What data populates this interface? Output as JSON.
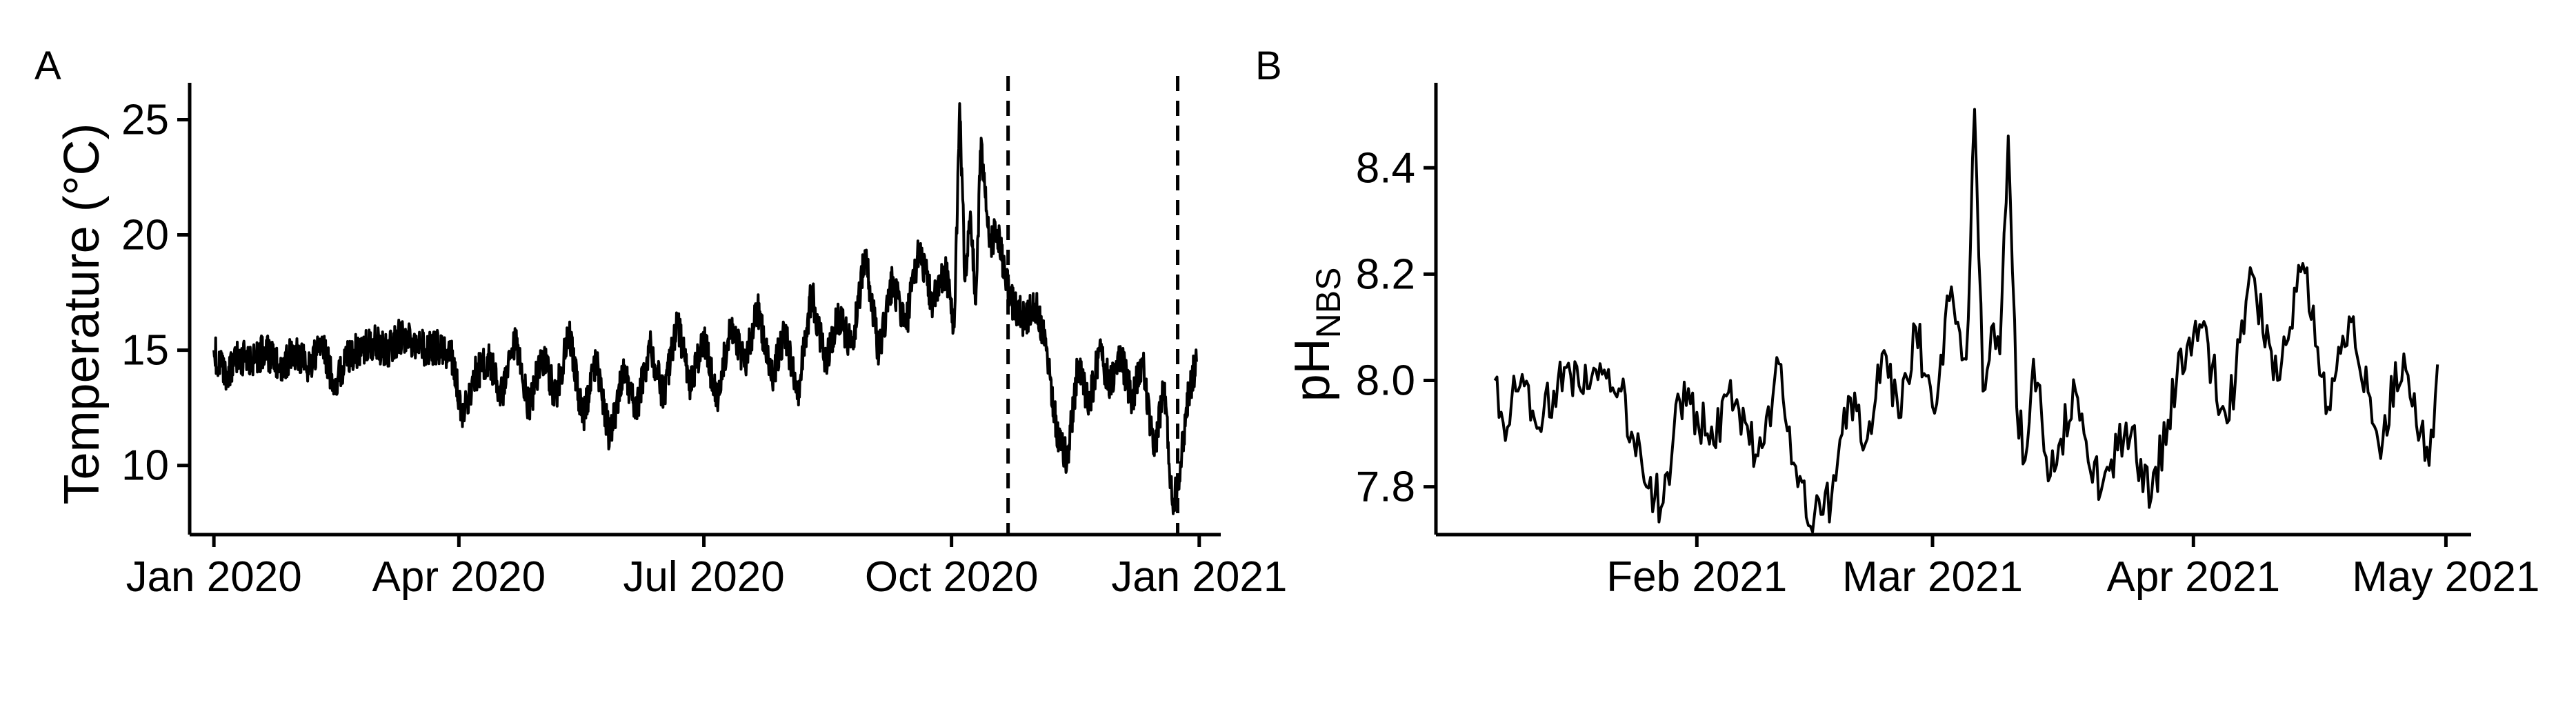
{
  "chart_data": [
    {
      "type": "line",
      "panel_label": "A",
      "ylabel": "Temperature (°C)",
      "xlabel": "",
      "xlim": [
        "2019-12-23",
        "2021-01-09"
      ],
      "ylim": [
        7.0,
        26.6
      ],
      "x_ticks": [
        {
          "value": "2020-01-01",
          "label": "Jan 2020"
        },
        {
          "value": "2020-04-01",
          "label": "Apr 2020"
        },
        {
          "value": "2020-07-01",
          "label": "Jul 2020"
        },
        {
          "value": "2020-10-01",
          "label": "Oct 2020"
        },
        {
          "value": "2021-01-01",
          "label": "Jan 2021"
        }
      ],
      "y_ticks": [
        {
          "value": 10,
          "label": "10"
        },
        {
          "value": 15,
          "label": "15"
        },
        {
          "value": 20,
          "label": "20"
        },
        {
          "value": 25,
          "label": "25"
        }
      ],
      "reference_lines": [
        {
          "x": "2020-10-22",
          "style": "dashed"
        },
        {
          "x": "2020-12-24",
          "style": "dashed"
        }
      ],
      "grid": false,
      "series": [
        {
          "x": [
            "2020-01-01",
            "2020-01-05",
            "2020-01-10",
            "2020-01-15",
            "2020-01-20",
            "2020-01-25",
            "2020-01-31",
            "2020-02-05",
            "2020-02-10",
            "2020-02-15",
            "2020-02-20",
            "2020-02-25",
            "2020-03-01",
            "2020-03-05",
            "2020-03-10",
            "2020-03-15",
            "2020-03-20",
            "2020-03-25",
            "2020-03-30",
            "2020-04-02",
            "2020-04-07",
            "2020-04-12",
            "2020-04-17",
            "2020-04-22",
            "2020-04-27",
            "2020-05-02",
            "2020-05-07",
            "2020-05-12",
            "2020-05-17",
            "2020-05-22",
            "2020-05-27",
            "2020-06-01",
            "2020-06-06",
            "2020-06-11",
            "2020-06-16",
            "2020-06-21",
            "2020-06-26",
            "2020-07-01",
            "2020-07-06",
            "2020-07-11",
            "2020-07-16",
            "2020-07-21",
            "2020-07-26",
            "2020-07-31",
            "2020-08-05",
            "2020-08-10",
            "2020-08-15",
            "2020-08-20",
            "2020-08-25",
            "2020-08-30",
            "2020-09-04",
            "2020-09-09",
            "2020-09-14",
            "2020-09-19",
            "2020-09-24",
            "2020-09-29",
            "2020-10-02",
            "2020-10-04",
            "2020-10-06",
            "2020-10-08",
            "2020-10-10",
            "2020-10-12",
            "2020-10-15",
            "2020-10-18",
            "2020-10-21",
            "2020-10-24",
            "2020-10-28",
            "2020-11-01",
            "2020-11-05",
            "2020-11-09",
            "2020-11-13",
            "2020-11-17",
            "2020-11-21",
            "2020-11-25",
            "2020-11-29",
            "2020-12-03",
            "2020-12-07",
            "2020-12-11",
            "2020-12-15",
            "2020-12-19",
            "2020-12-22",
            "2020-12-25",
            "2020-12-28",
            "2020-12-31"
          ],
          "values": [
            15.0,
            13.8,
            14.8,
            14.5,
            15.0,
            14.2,
            14.9,
            14.3,
            15.2,
            13.5,
            14.8,
            15.0,
            15.3,
            14.9,
            15.6,
            15.5,
            15.0,
            15.2,
            14.6,
            12.0,
            13.9,
            14.6,
            13.0,
            15.3,
            12.5,
            14.8,
            13.0,
            15.7,
            12.0,
            14.5,
            11.2,
            14.0,
            12.4,
            15.3,
            13.0,
            16.2,
            13.5,
            15.5,
            12.8,
            16.3,
            14.3,
            16.8,
            13.7,
            15.8,
            13.2,
            17.5,
            14.5,
            16.5,
            15.2,
            19.2,
            14.8,
            18.0,
            16.0,
            19.5,
            17.0,
            18.5,
            16.0,
            25.7,
            18.0,
            21.0,
            17.0,
            24.2,
            19.5,
            20.2,
            18.0,
            17.0,
            16.3,
            17.0,
            15.5,
            11.5,
            10.2,
            14.5,
            12.5,
            15.0,
            13.5,
            14.8,
            12.8,
            14.5,
            10.5,
            13.5,
            8.3,
            10.0,
            13.2,
            14.5
          ]
        }
      ]
    },
    {
      "type": "line",
      "panel_label": "B",
      "ylabel": "pH",
      "ylabel_subscript": "NBS",
      "xlabel": "",
      "xlim": [
        "2021-01-01",
        "2021-05-04"
      ],
      "ylim": [
        7.71,
        8.56
      ],
      "x_ticks": [
        {
          "value": "2021-02-01",
          "label": "Feb 2021"
        },
        {
          "value": "2021-03-01",
          "label": "Mar 2021"
        },
        {
          "value": "2021-04-01",
          "label": "Apr 2021"
        },
        {
          "value": "2021-05-01",
          "label": "May 2021"
        }
      ],
      "y_ticks": [
        {
          "value": 7.8,
          "label": "7.8"
        },
        {
          "value": 8.0,
          "label": "8.0"
        },
        {
          "value": 8.2,
          "label": "8.2"
        },
        {
          "value": 8.4,
          "label": "8.4"
        }
      ],
      "grid": false,
      "series": [
        {
          "x": [
            "2021-01-08",
            "2021-01-09",
            "2021-01-11",
            "2021-01-13",
            "2021-01-15",
            "2021-01-17",
            "2021-01-20",
            "2021-01-23",
            "2021-01-26",
            "2021-01-28",
            "2021-01-30",
            "2021-02-01",
            "2021-02-03",
            "2021-02-05",
            "2021-02-08",
            "2021-02-11",
            "2021-02-13",
            "2021-02-15",
            "2021-02-17",
            "2021-02-19",
            "2021-02-21",
            "2021-02-23",
            "2021-02-25",
            "2021-02-27",
            "2021-03-01",
            "2021-03-03",
            "2021-03-05",
            "2021-03-06",
            "2021-03-07",
            "2021-03-08",
            "2021-03-09",
            "2021-03-10",
            "2021-03-11",
            "2021-03-12",
            "2021-03-13",
            "2021-03-15",
            "2021-03-18",
            "2021-03-21",
            "2021-03-24",
            "2021-03-27",
            "2021-03-30",
            "2021-04-02",
            "2021-04-05",
            "2021-04-08",
            "2021-04-11",
            "2021-04-14",
            "2021-04-17",
            "2021-04-20",
            "2021-04-23",
            "2021-04-26",
            "2021-04-29",
            "2021-04-30"
          ],
          "values": [
            8.0,
            7.92,
            7.99,
            7.91,
            7.98,
            8.01,
            8.02,
            7.98,
            7.8,
            7.77,
            7.96,
            7.94,
            7.88,
            8.0,
            7.86,
            8.03,
            7.8,
            7.75,
            7.78,
            7.97,
            7.88,
            8.05,
            7.93,
            8.1,
            7.95,
            8.15,
            8.04,
            8.51,
            7.98,
            8.1,
            8.05,
            8.46,
            7.95,
            7.85,
            8.04,
            7.82,
            7.98,
            7.79,
            7.92,
            7.78,
            8.0,
            8.1,
            7.92,
            8.2,
            8.0,
            8.22,
            7.95,
            8.12,
            7.88,
            8.05,
            7.84,
            8.03
          ]
        }
      ]
    }
  ]
}
